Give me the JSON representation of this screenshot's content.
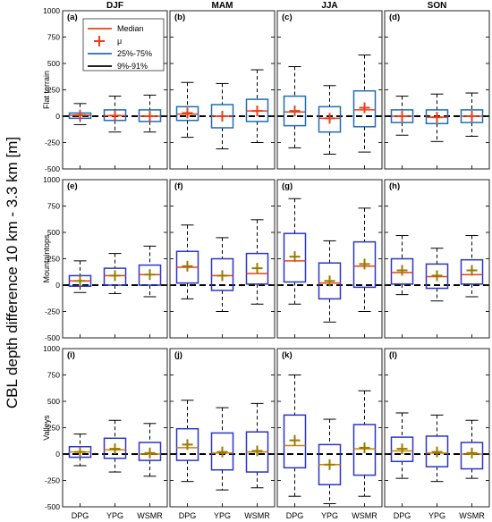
{
  "figure": {
    "ylabel": "CBL depth difference 10 km - 3.3 km [m]",
    "legend": {
      "entries": [
        {
          "label": "Median",
          "symbol": "line",
          "color": "#e8401c"
        },
        {
          "label": "μ",
          "symbol": "plus",
          "color": "#e8401c"
        },
        {
          "label": "25%-75%",
          "symbol": "line",
          "color": "#1f6db3"
        },
        {
          "label": "9%-91%",
          "symbol": "line",
          "color": "#000000"
        }
      ]
    },
    "colors": {
      "flat": "#1f6db3",
      "mount": "#2a35c8",
      "valley": "#2a35c8",
      "median_flat": "#e8401c",
      "median_mount": "#e8401c",
      "median_valley": "#d08000",
      "mean_flat": "#e8401c",
      "mean_other": "#9a7a00",
      "whisker": "#000000",
      "zero": "#000000"
    }
  },
  "chart_data": {
    "type": "boxplot",
    "seasons": [
      "DJF",
      "MAM",
      "JJA",
      "SON"
    ],
    "rows": [
      "Flat terrain",
      "Mountaintops",
      "Valleys"
    ],
    "categories": [
      "DPG",
      "YPG",
      "WSMR"
    ],
    "ylim": [
      -500,
      1000
    ],
    "yticks": [
      -500,
      -250,
      0,
      250,
      500,
      750,
      1000
    ],
    "ytick_labels": [
      "-500",
      "-250",
      "0",
      "250",
      "500",
      "750",
      "1000"
    ],
    "panels": [
      {
        "label": "(a)",
        "row": 0,
        "col": 0,
        "boxes": [
          {
            "p9": -80,
            "q1": -20,
            "median": 10,
            "mean": 10,
            "q3": 30,
            "p91": 120
          },
          {
            "p9": -150,
            "q1": -40,
            "median": 5,
            "mean": 5,
            "q3": 60,
            "p91": 190
          },
          {
            "p9": -150,
            "q1": -50,
            "median": 0,
            "mean": 0,
            "q3": 60,
            "p91": 200
          }
        ]
      },
      {
        "label": "(b)",
        "row": 0,
        "col": 1,
        "boxes": [
          {
            "p9": -200,
            "q1": -40,
            "median": 20,
            "mean": 30,
            "q3": 90,
            "p91": 320
          },
          {
            "p9": -310,
            "q1": -110,
            "median": 0,
            "mean": 0,
            "q3": 110,
            "p91": 310
          },
          {
            "p9": -250,
            "q1": -50,
            "median": 50,
            "mean": 50,
            "q3": 160,
            "p91": 440
          }
        ]
      },
      {
        "label": "(c)",
        "row": 0,
        "col": 2,
        "boxes": [
          {
            "p9": -300,
            "q1": -90,
            "median": 40,
            "mean": 50,
            "q3": 190,
            "p91": 470
          },
          {
            "p9": -360,
            "q1": -150,
            "median": -20,
            "mean": -20,
            "q3": 90,
            "p91": 290
          },
          {
            "p9": -340,
            "q1": -100,
            "median": 60,
            "mean": 80,
            "q3": 240,
            "p91": 580
          }
        ]
      },
      {
        "label": "(d)",
        "row": 0,
        "col": 3,
        "boxes": [
          {
            "p9": -180,
            "q1": -60,
            "median": 0,
            "mean": 0,
            "q3": 60,
            "p91": 190
          },
          {
            "p9": -240,
            "q1": -70,
            "median": -10,
            "mean": -10,
            "q3": 60,
            "p91": 210
          },
          {
            "p9": -190,
            "q1": -60,
            "median": 0,
            "mean": 0,
            "q3": 60,
            "p91": 220
          }
        ]
      },
      {
        "label": "(e)",
        "row": 1,
        "col": 0,
        "boxes": [
          {
            "p9": -70,
            "q1": -10,
            "median": 40,
            "mean": 40,
            "q3": 90,
            "p91": 230
          },
          {
            "p9": -80,
            "q1": 0,
            "median": 90,
            "mean": 90,
            "q3": 160,
            "p91": 300
          },
          {
            "p9": -110,
            "q1": 0,
            "median": 100,
            "mean": 100,
            "q3": 190,
            "p91": 370
          }
        ]
      },
      {
        "label": "(f)",
        "row": 1,
        "col": 1,
        "boxes": [
          {
            "p9": -130,
            "q1": 20,
            "median": 170,
            "mean": 180,
            "q3": 320,
            "p91": 570
          },
          {
            "p9": -250,
            "q1": -50,
            "median": 90,
            "mean": 90,
            "q3": 250,
            "p91": 450
          },
          {
            "p9": -180,
            "q1": 10,
            "median": 110,
            "mean": 160,
            "q3": 300,
            "p91": 620
          }
        ]
      },
      {
        "label": "(g)",
        "row": 1,
        "col": 2,
        "boxes": [
          {
            "p9": -180,
            "q1": 30,
            "median": 230,
            "mean": 270,
            "q3": 490,
            "p91": 820
          },
          {
            "p9": -350,
            "q1": -130,
            "median": 20,
            "mean": 40,
            "q3": 210,
            "p91": 420
          },
          {
            "p9": -250,
            "q1": -20,
            "median": 180,
            "mean": 200,
            "q3": 410,
            "p91": 730
          }
        ]
      },
      {
        "label": "(h)",
        "row": 1,
        "col": 3,
        "boxes": [
          {
            "p9": -90,
            "q1": 10,
            "median": 120,
            "mean": 140,
            "q3": 250,
            "p91": 470
          },
          {
            "p9": -150,
            "q1": -30,
            "median": 80,
            "mean": 90,
            "q3": 200,
            "p91": 350
          },
          {
            "p9": -110,
            "q1": 10,
            "median": 100,
            "mean": 140,
            "q3": 240,
            "p91": 470
          }
        ]
      },
      {
        "label": "(i)",
        "row": 2,
        "col": 0,
        "boxes": [
          {
            "p9": -110,
            "q1": -30,
            "median": 20,
            "mean": 20,
            "q3": 70,
            "p91": 190
          },
          {
            "p9": -170,
            "q1": -40,
            "median": 40,
            "mean": 50,
            "q3": 150,
            "p91": 320
          },
          {
            "p9": -210,
            "q1": -60,
            "median": 0,
            "mean": 10,
            "q3": 110,
            "p91": 290
          }
        ]
      },
      {
        "label": "(j)",
        "row": 2,
        "col": 1,
        "boxes": [
          {
            "p9": -260,
            "q1": -60,
            "median": 60,
            "mean": 90,
            "q3": 240,
            "p91": 510
          },
          {
            "p9": -340,
            "q1": -150,
            "median": 10,
            "mean": 20,
            "q3": 200,
            "p91": 440
          },
          {
            "p9": -320,
            "q1": -170,
            "median": 20,
            "mean": 30,
            "q3": 210,
            "p91": 480
          }
        ]
      },
      {
        "label": "(k)",
        "row": 2,
        "col": 2,
        "boxes": [
          {
            "p9": -400,
            "q1": -130,
            "median": 80,
            "mean": 130,
            "q3": 370,
            "p91": 750
          },
          {
            "p9": -470,
            "q1": -290,
            "median": -100,
            "mean": -100,
            "q3": 90,
            "p91": 330
          },
          {
            "p9": -400,
            "q1": -200,
            "median": 50,
            "mean": 60,
            "q3": 280,
            "p91": 600
          }
        ]
      },
      {
        "label": "(l)",
        "row": 2,
        "col": 3,
        "boxes": [
          {
            "p9": -230,
            "q1": -70,
            "median": 30,
            "mean": 50,
            "q3": 160,
            "p91": 390
          },
          {
            "p9": -260,
            "q1": -120,
            "median": 10,
            "mean": 20,
            "q3": 170,
            "p91": 370
          },
          {
            "p9": -230,
            "q1": -140,
            "median": 0,
            "mean": 10,
            "q3": 110,
            "p91": 320
          }
        ]
      }
    ]
  }
}
